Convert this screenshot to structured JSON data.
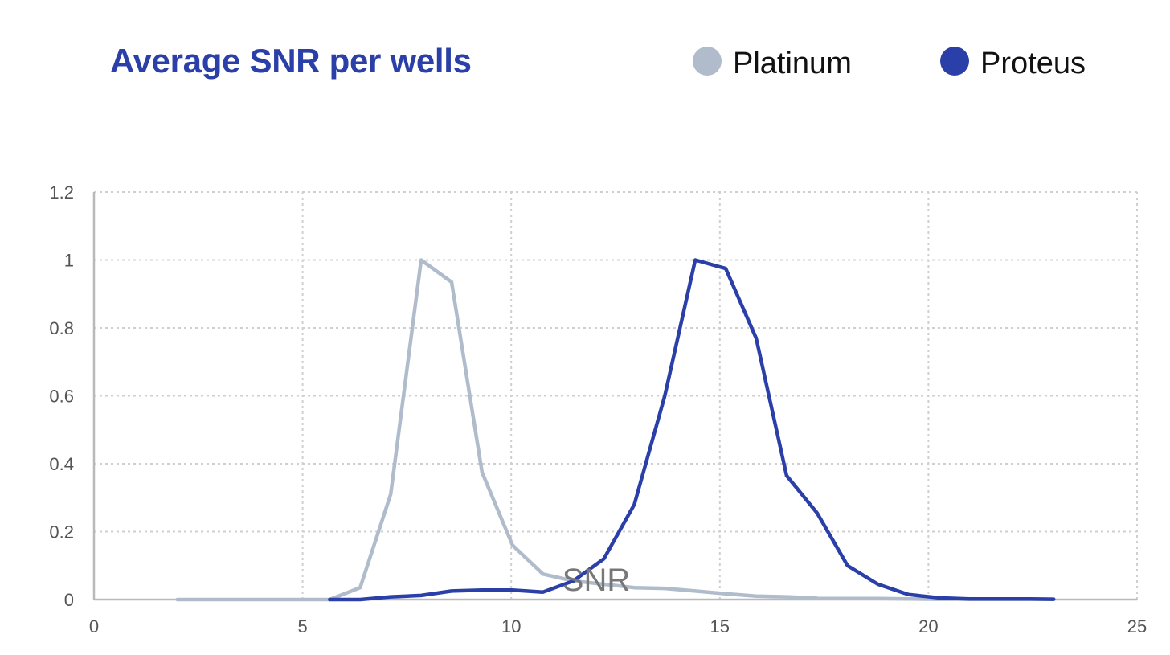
{
  "chart_data": {
    "type": "line",
    "title": "Average SNR per wells",
    "xlabel": "SNR",
    "ylabel": "",
    "xlim": [
      0,
      25
    ],
    "ylim": [
      0,
      1.2
    ],
    "xticks": [
      0,
      5,
      10,
      15,
      20,
      25
    ],
    "yticks": [
      0,
      0.2,
      0.4,
      0.6,
      0.8,
      1,
      1.2
    ],
    "ytick_labels": [
      "0",
      "0.2",
      "0.4",
      "0.6",
      "0.8",
      "1",
      "1.2"
    ],
    "grid": true,
    "legend_position": "top-right",
    "series": [
      {
        "name": "Platinum",
        "color": "#b0bccb",
        "x": [
          2.0,
          2.73,
          3.46,
          4.19,
          4.92,
          5.65,
          6.38,
          7.11,
          7.84,
          8.57,
          9.3,
          10.03,
          10.76,
          11.49,
          12.22,
          12.95,
          13.68,
          14.41,
          15.14,
          15.87,
          16.6,
          17.33,
          18.06,
          18.79,
          19.52,
          20.25,
          20.98,
          21.71,
          22.44,
          23.0
        ],
        "y": [
          0,
          0,
          0,
          0,
          0,
          0,
          0.035,
          0.31,
          1.0,
          0.935,
          0.375,
          0.16,
          0.075,
          0.055,
          0.045,
          0.035,
          0.033,
          0.025,
          0.017,
          0.01,
          0.008,
          0.004,
          0.003,
          0.003,
          0.002,
          0.001,
          0.001,
          0.001,
          0.001,
          0.001
        ]
      },
      {
        "name": "Proteus",
        "color": "#2b3fa8",
        "x": [
          5.65,
          6.38,
          7.11,
          7.84,
          8.57,
          9.3,
          10.03,
          10.76,
          11.49,
          12.22,
          12.95,
          13.68,
          14.41,
          15.14,
          15.87,
          16.6,
          17.33,
          18.06,
          18.79,
          19.52,
          20.25,
          20.98,
          21.71,
          22.44,
          23.0
        ],
        "y": [
          0,
          0,
          0.008,
          0.012,
          0.025,
          0.028,
          0.028,
          0.022,
          0.055,
          0.12,
          0.28,
          0.6,
          1.0,
          0.975,
          0.77,
          0.365,
          0.255,
          0.1,
          0.045,
          0.015,
          0.005,
          0.002,
          0.002,
          0.002,
          0.001
        ]
      }
    ]
  },
  "colors": {
    "title": "#2b3fa8",
    "axis": "#b9b9b9",
    "grid": "#cfcfcf"
  }
}
